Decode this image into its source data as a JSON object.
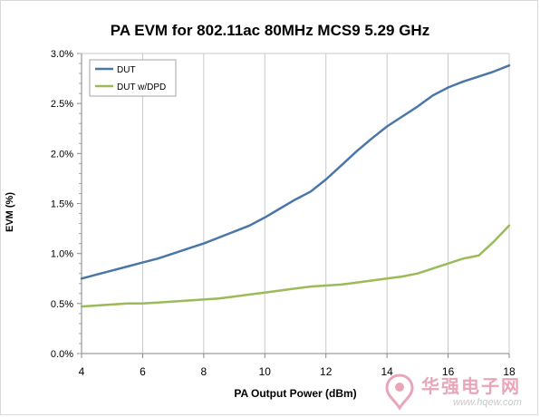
{
  "chart_data": {
    "type": "line",
    "title": "PA EVM for 802.11ac 80MHz MCS9 5.29 GHz",
    "xlabel": "PA Output Power (dBm)",
    "ylabel": "EVM (%)",
    "xlim": [
      4,
      18
    ],
    "ylim": [
      0,
      3.0
    ],
    "x_ticks": [
      "4",
      "6",
      "8",
      "10",
      "12",
      "14",
      "16",
      "18"
    ],
    "y_ticks": [
      "0.0%",
      "0.5%",
      "1.0%",
      "1.5%",
      "2.0%",
      "2.5%",
      "3.0%"
    ],
    "grid": "vertical",
    "legend": "top-left",
    "x": [
      4,
      4.5,
      5,
      5.5,
      6,
      6.5,
      7,
      7.5,
      8,
      8.5,
      9,
      9.5,
      10,
      10.5,
      11,
      11.5,
      12,
      12.5,
      13,
      13.5,
      14,
      14.5,
      15,
      15.5,
      16,
      16.5,
      17,
      17.5,
      18
    ],
    "series": [
      {
        "name": "DUT",
        "color": "#4a76a8",
        "values": [
          0.75,
          0.79,
          0.83,
          0.87,
          0.91,
          0.95,
          1.0,
          1.05,
          1.1,
          1.16,
          1.22,
          1.28,
          1.36,
          1.45,
          1.54,
          1.62,
          1.74,
          1.88,
          2.02,
          2.15,
          2.27,
          2.37,
          2.47,
          2.58,
          2.66,
          2.72,
          2.77,
          2.82,
          2.88
        ]
      },
      {
        "name": "DUT w/DPD",
        "color": "#9bbb59",
        "values": [
          0.47,
          0.48,
          0.49,
          0.5,
          0.5,
          0.51,
          0.52,
          0.53,
          0.54,
          0.55,
          0.57,
          0.59,
          0.61,
          0.63,
          0.65,
          0.67,
          0.68,
          0.69,
          0.71,
          0.73,
          0.75,
          0.77,
          0.8,
          0.85,
          0.9,
          0.95,
          0.98,
          1.12,
          1.28
        ]
      }
    ]
  },
  "watermark": {
    "text": "华强电子网",
    "url": "www.hqew.com"
  }
}
